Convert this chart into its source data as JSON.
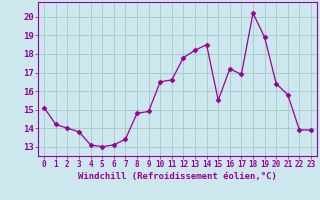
{
  "x": [
    0,
    1,
    2,
    3,
    4,
    5,
    6,
    7,
    8,
    9,
    10,
    11,
    12,
    13,
    14,
    15,
    16,
    17,
    18,
    19,
    20,
    21,
    22,
    23
  ],
  "y": [
    15.1,
    14.2,
    14.0,
    13.8,
    13.1,
    13.0,
    13.1,
    13.4,
    14.8,
    14.9,
    16.5,
    16.6,
    17.8,
    18.2,
    18.5,
    15.5,
    17.2,
    16.9,
    20.2,
    18.9,
    16.4,
    15.8,
    13.9,
    13.9
  ],
  "line_color": "#990099",
  "marker": "D",
  "marker_size": 2.5,
  "bg_color": "#cce8ee",
  "grid_color": "#aacccc",
  "xlabel": "Windchill (Refroidissement éolien,°C)",
  "ylabel_ticks": [
    13,
    14,
    15,
    16,
    17,
    18,
    19,
    20
  ],
  "ylim": [
    12.5,
    20.8
  ],
  "xlim": [
    -0.5,
    23.5
  ],
  "xlabel_fontsize": 6.5,
  "ytick_fontsize": 6.5,
  "xtick_fontsize": 5.5
}
